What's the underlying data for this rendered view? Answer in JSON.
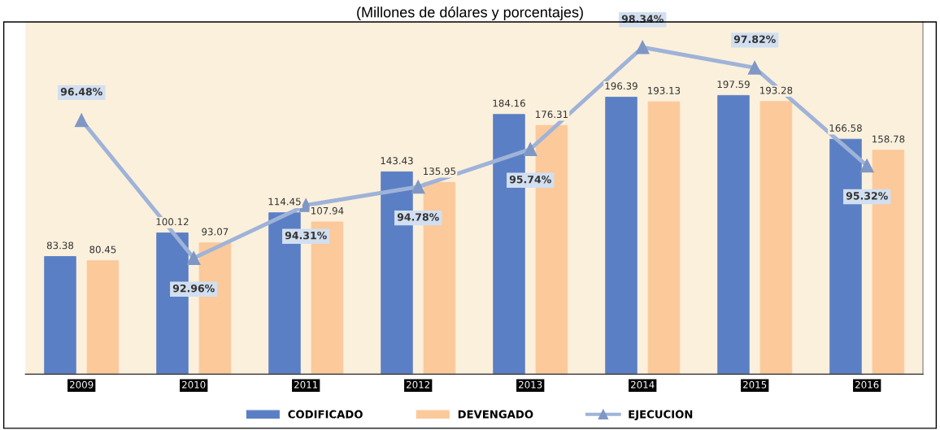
{
  "chart_data": {
    "type": "bar",
    "title": "(Millones de dólares y porcentajes)",
    "categories": [
      "2009",
      "2010",
      "2011",
      "2012",
      "2013",
      "2014",
      "2015",
      "2016"
    ],
    "series": [
      {
        "name": "CODIFICADO",
        "color": "#5b7fc4",
        "values": [
          83.38,
          100.12,
          114.45,
          143.43,
          184.16,
          196.39,
          197.59,
          166.58
        ]
      },
      {
        "name": "DEVENGADO",
        "color": "#fbc99a",
        "values": [
          80.45,
          93.07,
          107.94,
          135.95,
          176.31,
          193.13,
          193.28,
          158.78
        ]
      },
      {
        "name": "EJECUCION",
        "type": "line",
        "axis": "y2",
        "color": "#9fb3d8",
        "marker": "triangle",
        "values": [
          96.48,
          92.96,
          94.31,
          94.78,
          95.74,
          98.34,
          97.82,
          95.32
        ],
        "value_labels": [
          "96.48%",
          "92.96%",
          "94.31%",
          "94.78%",
          "95.74%",
          "98.34%",
          "97.82%",
          "95.32%"
        ]
      }
    ],
    "ylim": [
      0,
      250
    ],
    "y2lim": [
      90,
      99
    ],
    "tick_labels": "x",
    "data_labels": true,
    "legend": "bottom",
    "grid": false
  }
}
